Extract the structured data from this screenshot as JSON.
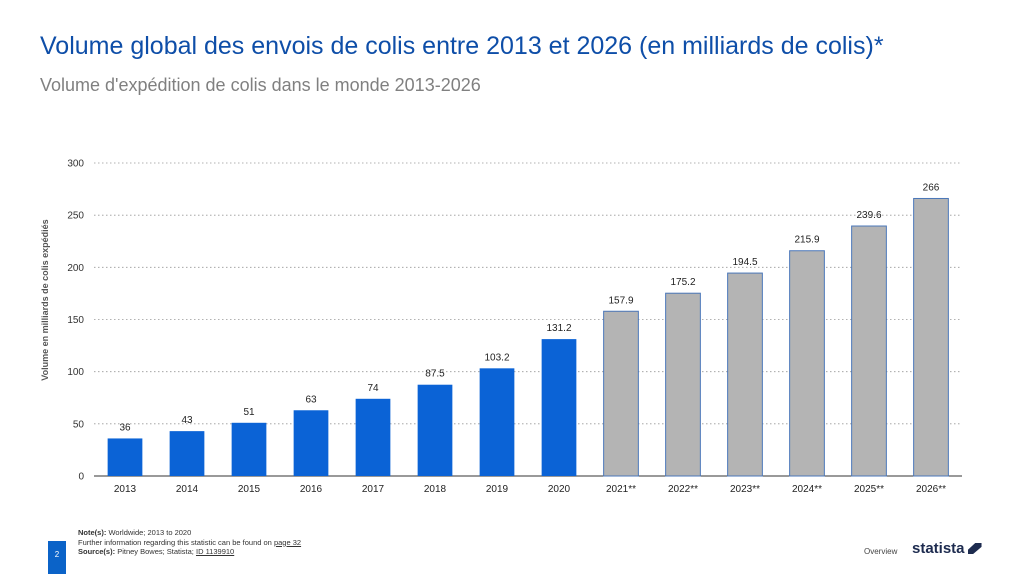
{
  "header": {
    "title": "Volume global des envois de colis entre 2013 et 2026 (en milliards de colis)*",
    "subtitle": "Volume d'expédition de colis dans le monde 2013-2026"
  },
  "chart_data": {
    "type": "bar",
    "categories": [
      "2013",
      "2014",
      "2015",
      "2016",
      "2017",
      "2018",
      "2019",
      "2020",
      "2021**",
      "2022**",
      "2023**",
      "2024**",
      "2025**",
      "2026**"
    ],
    "values": [
      36,
      43,
      51,
      63,
      74,
      87.5,
      103.2,
      131.2,
      157.9,
      175.2,
      194.5,
      215.9,
      239.6,
      266
    ],
    "value_labels": [
      "36",
      "43",
      "51",
      "63",
      "74",
      "87.5",
      "103.2",
      "131.2",
      "157.9",
      "175.2",
      "194.5",
      "215.9",
      "239.6",
      "266"
    ],
    "forecast": [
      false,
      false,
      false,
      false,
      false,
      false,
      false,
      false,
      true,
      true,
      true,
      true,
      true,
      true
    ],
    "ylabel": "Volume en milliards de colis expédiés",
    "xlabel": "",
    "ylim": [
      0,
      300
    ],
    "yticks": [
      0,
      50,
      100,
      150,
      200,
      250,
      300
    ],
    "grid": true,
    "colors": {
      "actual": "#0b63d6",
      "forecast": "#b4b4b4",
      "forecast_border": "#4a76b8"
    }
  },
  "footer": {
    "notes_label": "Note(s):",
    "notes_text": "Worldwide; 2013 to 2020",
    "further_text": "Further information regarding this statistic can be found on",
    "further_link": "page 32",
    "source_label": "Source(s):",
    "source_text": "Pitney Bowes; Statista;",
    "source_id": "ID 1139910",
    "page_number": "2",
    "overview": "Overview",
    "brand": "statista"
  }
}
